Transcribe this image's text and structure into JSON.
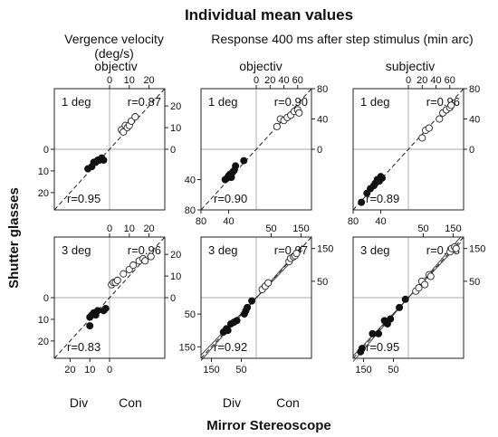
{
  "figure": {
    "title": "Individual mean values",
    "subtitle_left_line1": "Vergence velocity",
    "subtitle_left_line2": "(deg/s)",
    "subtitle_right": "Response 400 ms after step stimulus (min arc)",
    "y_axis_label": "Shutter glasses",
    "x_axis_label": "Mirror Stereoscope",
    "column_labels": [
      "objectiv",
      "objectiv",
      "subjectiv"
    ],
    "bottom_labels": [
      "Div",
      "Con",
      "Div",
      "Con"
    ]
  },
  "chart_data": [
    {
      "type": "scatter",
      "title": "objectiv",
      "row": 0,
      "col": 0,
      "condition": "1 deg",
      "r_con": "r=0.87",
      "r_div": "r=0.95",
      "xlim": [
        -28,
        28
      ],
      "ylim": [
        -28,
        28
      ],
      "top_ticks": [
        0,
        10,
        20
      ],
      "top_tick_labels": [
        "0",
        "10",
        "20"
      ],
      "bottom_ticks": [],
      "bottom_tick_labels": [],
      "left_ticks": [
        0,
        -10,
        -20
      ],
      "left_tick_labels": [
        "0",
        "10",
        "20"
      ],
      "right_ticks": [
        0,
        10,
        20
      ],
      "right_tick_labels": [
        "0",
        "10",
        "20"
      ],
      "div_points": [
        [
          -11,
          -9
        ],
        [
          -9,
          -8
        ],
        [
          -8,
          -6
        ],
        [
          -7,
          -6
        ],
        [
          -6,
          -5
        ],
        [
          -5,
          -5
        ],
        [
          -4,
          -4
        ],
        [
          -3,
          -5
        ]
      ],
      "con_points": [
        [
          6,
          9
        ],
        [
          7,
          8
        ],
        [
          8,
          11
        ],
        [
          9,
          10
        ],
        [
          10,
          11
        ],
        [
          11,
          13
        ],
        [
          13,
          15
        ]
      ],
      "fit_lines": []
    },
    {
      "type": "scatter",
      "title": "objectiv",
      "row": 0,
      "col": 1,
      "condition": "1 deg",
      "r_con": "r=0.90",
      "r_div": "r=0.90",
      "xlim": [
        -80,
        80
      ],
      "ylim": [
        -80,
        80
      ],
      "top_ticks": [
        0,
        20,
        40,
        60
      ],
      "top_tick_labels": [
        "0",
        "20",
        "40",
        "60"
      ],
      "bottom_ticks": [
        -80,
        -40
      ],
      "bottom_tick_labels": [
        "80",
        "40"
      ],
      "left_ticks": [
        -40,
        -80
      ],
      "left_tick_labels": [
        "40",
        "80"
      ],
      "right_ticks": [
        0,
        40,
        80
      ],
      "right_tick_labels": [
        "0",
        "40",
        "80"
      ],
      "div_points": [
        [
          -45,
          -40
        ],
        [
          -42,
          -38
        ],
        [
          -40,
          -35
        ],
        [
          -38,
          -33
        ],
        [
          -36,
          -37
        ],
        [
          -34,
          -30
        ],
        [
          -32,
          -28
        ],
        [
          -30,
          -22
        ],
        [
          -18,
          -15
        ]
      ],
      "con_points": [
        [
          30,
          30
        ],
        [
          35,
          40
        ],
        [
          40,
          38
        ],
        [
          45,
          42
        ],
        [
          50,
          45
        ],
        [
          55,
          50
        ],
        [
          60,
          52
        ],
        [
          62,
          48
        ]
      ],
      "fit_lines": []
    },
    {
      "type": "scatter",
      "title": "subjectiv",
      "row": 0,
      "col": 2,
      "condition": "1 deg",
      "r_con": "r=0.96",
      "r_div": "r=0.89",
      "xlim": [
        -80,
        80
      ],
      "ylim": [
        -80,
        80
      ],
      "top_ticks": [
        0,
        20,
        40,
        60
      ],
      "top_tick_labels": [
        "0",
        "20",
        "40",
        "60"
      ],
      "bottom_ticks": [
        -80,
        -40
      ],
      "bottom_tick_labels": [
        "80",
        "40"
      ],
      "left_ticks": [],
      "left_tick_labels": [],
      "right_ticks": [
        0,
        40,
        80
      ],
      "right_tick_labels": [
        "0",
        "40",
        "80"
      ],
      "div_points": [
        [
          -68,
          -70
        ],
        [
          -60,
          -58
        ],
        [
          -55,
          -52
        ],
        [
          -50,
          -48
        ],
        [
          -48,
          -45
        ],
        [
          -45,
          -40
        ],
        [
          -42,
          -42
        ],
        [
          -40,
          -36
        ],
        [
          -38,
          -38
        ]
      ],
      "con_points": [
        [
          20,
          15
        ],
        [
          25,
          25
        ],
        [
          30,
          28
        ],
        [
          45,
          40
        ],
        [
          50,
          48
        ],
        [
          55,
          52
        ],
        [
          60,
          55
        ],
        [
          62,
          58
        ]
      ],
      "fit_lines": []
    },
    {
      "type": "scatter",
      "title": "",
      "row": 1,
      "col": 0,
      "condition": "3 deg",
      "r_con": "r=0.96",
      "r_div": "r=0.83",
      "xlim": [
        -28,
        28
      ],
      "ylim": [
        -28,
        28
      ],
      "top_ticks": [
        0,
        10,
        20
      ],
      "top_tick_labels": [
        "0",
        "10",
        "20"
      ],
      "bottom_ticks": [
        -20,
        -10,
        0
      ],
      "bottom_tick_labels": [
        "20",
        "10",
        "0"
      ],
      "left_ticks": [
        0,
        -10,
        -20
      ],
      "left_tick_labels": [
        "0",
        "10",
        "20"
      ],
      "right_ticks": [
        0,
        10,
        20
      ],
      "right_tick_labels": [
        "0",
        "10",
        "20"
      ],
      "div_points": [
        [
          -10,
          -13
        ],
        [
          -10,
          -9
        ],
        [
          -9,
          -8
        ],
        [
          -8,
          -7
        ],
        [
          -7,
          -8
        ],
        [
          -6,
          -6
        ],
        [
          -3,
          -6
        ],
        [
          -2,
          -5
        ]
      ],
      "con_points": [
        [
          1,
          6
        ],
        [
          2,
          7
        ],
        [
          3,
          7
        ],
        [
          4,
          8
        ],
        [
          7,
          11
        ],
        [
          10,
          13
        ],
        [
          12,
          15
        ],
        [
          15,
          17
        ],
        [
          17,
          18
        ],
        [
          18,
          17
        ],
        [
          21,
          19
        ]
      ],
      "fit_lines": []
    },
    {
      "type": "scatter",
      "title": "",
      "row": 1,
      "col": 1,
      "condition": "3 deg",
      "r_con": "r=0.97",
      "r_div": "r=0.92",
      "xlim": [
        -185,
        185
      ],
      "ylim": [
        -185,
        185
      ],
      "top_ticks": [
        50,
        150
      ],
      "top_tick_labels": [
        "50",
        "150"
      ],
      "bottom_ticks": [
        -150,
        -50
      ],
      "bottom_tick_labels": [
        "150",
        "50"
      ],
      "left_ticks": [
        -50,
        -150
      ],
      "left_tick_labels": [
        "50",
        "150"
      ],
      "right_ticks": [
        150,
        50
      ],
      "right_tick_labels": [
        "150",
        "50"
      ],
      "div_points": [
        [
          -110,
          -105
        ],
        [
          -100,
          -95
        ],
        [
          -95,
          -100
        ],
        [
          -85,
          -80
        ],
        [
          -75,
          -75
        ],
        [
          -65,
          -70
        ],
        [
          -40,
          -50
        ],
        [
          -35,
          -40
        ],
        [
          -30,
          -30
        ],
        [
          -15,
          -10
        ]
      ],
      "con_points": [
        [
          20,
          25
        ],
        [
          30,
          35
        ],
        [
          40,
          45
        ],
        [
          110,
          110
        ],
        [
          115,
          120
        ],
        [
          125,
          125
        ],
        [
          130,
          128
        ],
        [
          135,
          135
        ]
      ],
      "fit_lines": [
        {
          "x1": -185,
          "y1": -175,
          "x2": 155,
          "y2": 145
        },
        {
          "x1": -185,
          "y1": -192,
          "x2": 155,
          "y2": 160
        }
      ]
    },
    {
      "type": "scatter",
      "title": "",
      "row": 1,
      "col": 2,
      "condition": "3 deg",
      "r_con": "r=0.98",
      "r_div": "r=0.95",
      "xlim": [
        -185,
        185
      ],
      "ylim": [
        -185,
        185
      ],
      "top_ticks": [
        50,
        150
      ],
      "top_tick_labels": [
        "50",
        "150"
      ],
      "bottom_ticks": [
        -150,
        -50
      ],
      "bottom_tick_labels": [
        "150",
        "50"
      ],
      "left_ticks": [],
      "left_tick_labels": [],
      "right_ticks": [
        150,
        50
      ],
      "right_tick_labels": [
        "150",
        "50"
      ],
      "div_points": [
        [
          -160,
          -165
        ],
        [
          -155,
          -155
        ],
        [
          -120,
          -110
        ],
        [
          -100,
          -110
        ],
        [
          -80,
          -70
        ],
        [
          -70,
          -80
        ],
        [
          -60,
          -65
        ],
        [
          -30,
          -30
        ],
        [
          -10,
          -5
        ]
      ],
      "con_points": [
        [
          25,
          20
        ],
        [
          35,
          30
        ],
        [
          45,
          50
        ],
        [
          55,
          40
        ],
        [
          70,
          70
        ],
        [
          75,
          65
        ],
        [
          140,
          140
        ],
        [
          145,
          150
        ],
        [
          155,
          155
        ],
        [
          160,
          150
        ]
      ],
      "fit_lines": [
        {
          "x1": -185,
          "y1": -178,
          "x2": 175,
          "y2": 168
        },
        {
          "x1": -185,
          "y1": -195,
          "x2": 175,
          "y2": 185
        }
      ]
    }
  ]
}
